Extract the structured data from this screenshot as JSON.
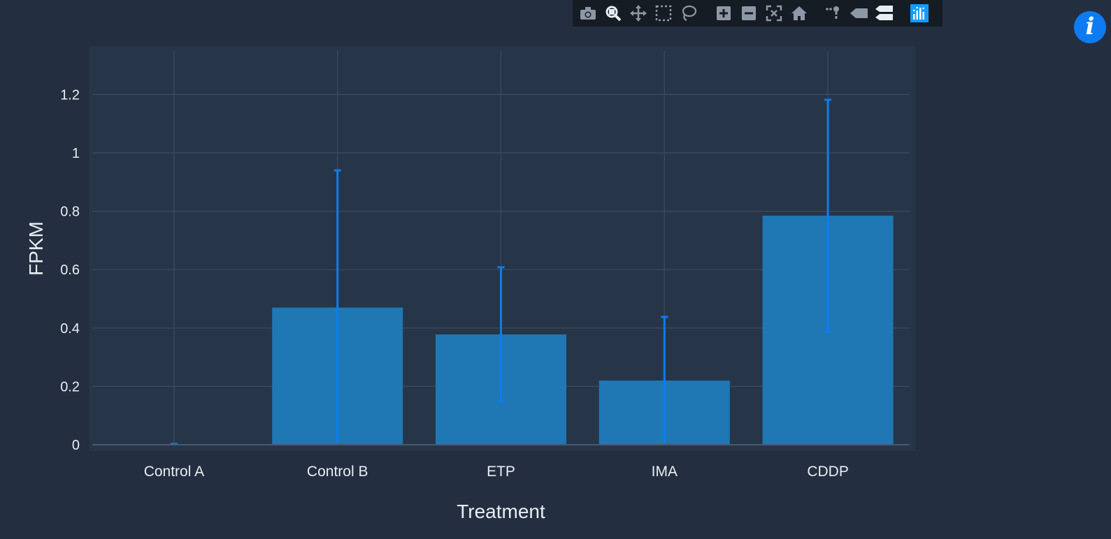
{
  "chart_data": {
    "type": "bar",
    "title": "",
    "xlabel": "Treatment",
    "ylabel": "FPKM",
    "categories": [
      "Control A",
      "Control B",
      "ETP",
      "IMA",
      "CDDP"
    ],
    "values": [
      0.0,
      0.47,
      0.378,
      0.22,
      0.785
    ],
    "error_upper": [
      0.003,
      0.94,
      0.608,
      0.438,
      1.182
    ],
    "error_lower": [
      0.0,
      0.0,
      0.148,
      0.0,
      0.388
    ],
    "ylim": [
      0,
      1.35
    ],
    "yticks": [
      0,
      0.2,
      0.4,
      0.6,
      0.8,
      1,
      1.2
    ],
    "ytick_labels": [
      "0",
      "0.2",
      "0.4",
      "0.6",
      "0.8",
      "1",
      "1.2"
    ],
    "grid": true,
    "colors": {
      "bar": "#1f77b4",
      "error_bar": "#0d7cf2",
      "plot_bg": "#263648",
      "page_bg": "#232f41",
      "grid": "#3c4b5e",
      "text": "#e8edf2"
    }
  },
  "modebar": {
    "icons": [
      "camera-icon",
      "zoom-icon",
      "pan-icon",
      "box-select-icon",
      "lasso-select-icon",
      "zoom-in-icon",
      "zoom-out-icon",
      "autoscale-icon",
      "reset-axes-icon",
      "spike-lines-icon",
      "hover-closest-icon",
      "hover-compare-icon",
      "plotly-logo-icon"
    ]
  },
  "info_button": {
    "label": "i",
    "color": "#0d7cf2"
  }
}
